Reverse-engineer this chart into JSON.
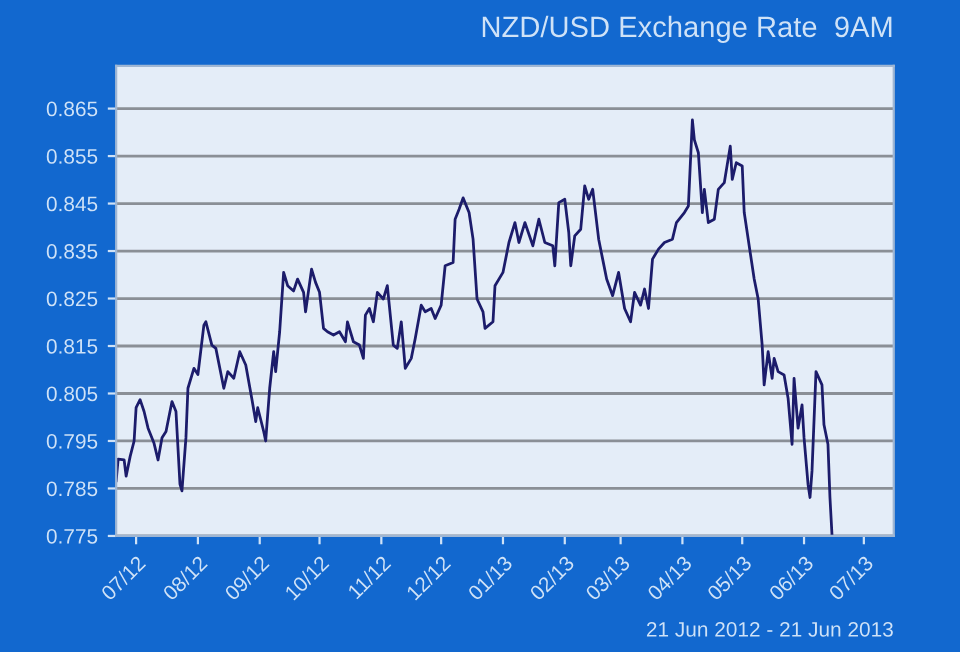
{
  "chart_data": {
    "type": "line",
    "title": "NZD/USD Exchange Rate  9AM",
    "annotations": [
      "21 Jun 2012 - 21 Jun 2013"
    ],
    "xlim": [
      "2012-06-21",
      "2013-07-16"
    ],
    "xticks": [
      {
        "value": "2012-07-01",
        "label": "07/12"
      },
      {
        "value": "2012-08-01",
        "label": "08/12"
      },
      {
        "value": "2012-09-01",
        "label": "09/12"
      },
      {
        "value": "2012-10-01",
        "label": "10/12"
      },
      {
        "value": "2012-11-01",
        "label": "11/12"
      },
      {
        "value": "2012-12-01",
        "label": "12/12"
      },
      {
        "value": "2013-01-01",
        "label": "01/13"
      },
      {
        "value": "2013-02-01",
        "label": "02/13"
      },
      {
        "value": "2013-03-01",
        "label": "03/13"
      },
      {
        "value": "2013-04-01",
        "label": "04/13"
      },
      {
        "value": "2013-05-01",
        "label": "05/13"
      },
      {
        "value": "2013-06-01",
        "label": "06/13"
      },
      {
        "value": "2013-07-01",
        "label": "07/13"
      }
    ],
    "ylim": [
      0.775,
      0.874
    ],
    "yticks": [
      0.775,
      0.785,
      0.795,
      0.805,
      0.815,
      0.825,
      0.835,
      0.845,
      0.855,
      0.865
    ],
    "grid": "y",
    "marker": "none",
    "line_style": "solid",
    "series": [
      {
        "color": "#1c1c6b",
        "x": [
          "2012-06-21",
          "2012-06-22",
          "2012-06-25",
          "2012-06-26",
          "2012-06-28",
          "2012-06-30",
          "2012-07-01",
          "2012-07-03",
          "2012-07-05",
          "2012-07-07",
          "2012-07-10",
          "2012-07-12",
          "2012-07-14",
          "2012-07-16",
          "2012-07-19",
          "2012-07-21",
          "2012-07-23",
          "2012-07-24",
          "2012-07-26",
          "2012-07-27",
          "2012-07-30",
          "2012-08-01",
          "2012-08-04",
          "2012-08-05",
          "2012-08-08",
          "2012-08-10",
          "2012-08-14",
          "2012-08-16",
          "2012-08-19",
          "2012-08-22",
          "2012-08-25",
          "2012-08-28",
          "2012-08-30",
          "2012-08-31",
          "2012-09-03",
          "2012-09-04",
          "2012-09-06",
          "2012-09-08",
          "2012-09-09",
          "2012-09-11",
          "2012-09-13",
          "2012-09-15",
          "2012-09-18",
          "2012-09-20",
          "2012-09-23",
          "2012-09-24",
          "2012-09-27",
          "2012-09-29",
          "2012-10-01",
          "2012-10-03",
          "2012-10-05",
          "2012-10-08",
          "2012-10-11",
          "2012-10-14",
          "2012-10-15",
          "2012-10-18",
          "2012-10-21",
          "2012-10-23",
          "2012-10-24",
          "2012-10-26",
          "2012-10-28",
          "2012-10-30",
          "2012-11-02",
          "2012-11-04",
          "2012-11-07",
          "2012-11-09",
          "2012-11-11",
          "2012-11-13",
          "2012-11-16",
          "2012-11-18",
          "2012-11-21",
          "2012-11-23",
          "2012-11-26",
          "2012-11-28",
          "2012-12-01",
          "2012-12-03",
          "2012-12-07",
          "2012-12-08",
          "2012-12-10",
          "2012-12-12",
          "2012-12-15",
          "2012-12-17",
          "2012-12-19",
          "2012-12-22",
          "2012-12-23",
          "2012-12-27",
          "2012-12-28",
          "2013-01-01",
          "2013-01-04",
          "2013-01-07",
          "2013-01-09",
          "2013-01-12",
          "2013-01-16",
          "2013-01-19",
          "2013-01-22",
          "2013-01-26",
          "2013-01-27",
          "2013-01-29",
          "2013-02-01",
          "2013-02-03",
          "2013-02-04",
          "2013-02-06",
          "2013-02-09",
          "2013-02-11",
          "2013-02-13",
          "2013-02-15",
          "2013-02-16",
          "2013-02-18",
          "2013-02-20",
          "2013-02-22",
          "2013-02-25",
          "2013-02-28",
          "2013-03-03",
          "2013-03-06",
          "2013-03-08",
          "2013-03-11",
          "2013-03-13",
          "2013-03-15",
          "2013-03-17",
          "2013-03-20",
          "2013-03-23",
          "2013-03-27",
          "2013-03-29",
          "2013-04-02",
          "2013-04-04",
          "2013-04-06",
          "2013-04-07",
          "2013-04-09",
          "2013-04-11",
          "2013-04-12",
          "2013-04-14",
          "2013-04-17",
          "2013-04-19",
          "2013-04-22",
          "2013-04-25",
          "2013-04-26",
          "2013-04-28",
          "2013-05-01",
          "2013-05-02",
          "2013-05-05",
          "2013-05-07",
          "2013-05-09",
          "2013-05-11",
          "2013-05-12",
          "2013-05-14",
          "2013-05-16",
          "2013-05-17",
          "2013-05-19",
          "2013-05-22",
          "2013-05-24",
          "2013-05-26",
          "2013-05-27",
          "2013-05-29",
          "2013-05-31",
          "2013-06-01",
          "2013-06-03",
          "2013-06-04",
          "2013-06-05",
          "2013-06-07",
          "2013-06-10",
          "2013-06-11",
          "2013-06-13",
          "2013-06-14",
          "2013-06-15"
        ],
        "values": [
          0.7866,
          0.7912,
          0.791,
          0.7876,
          0.7917,
          0.795,
          0.802,
          0.8037,
          0.8012,
          0.7977,
          0.7945,
          0.791,
          0.7957,
          0.797,
          0.8033,
          0.8012,
          0.7859,
          0.7845,
          0.7957,
          0.8061,
          0.8103,
          0.809,
          0.8194,
          0.8201,
          0.8152,
          0.8145,
          0.8061,
          0.8096,
          0.8082,
          0.8138,
          0.811,
          0.804,
          0.7991,
          0.802,
          0.797,
          0.795,
          0.8061,
          0.8138,
          0.8096,
          0.818,
          0.8305,
          0.8277,
          0.8266,
          0.8291,
          0.8263,
          0.8222,
          0.8312,
          0.8284,
          0.8263,
          0.8187,
          0.818,
          0.8173,
          0.818,
          0.8159,
          0.8201,
          0.8159,
          0.8152,
          0.8124,
          0.8215,
          0.8229,
          0.8201,
          0.8263,
          0.8249,
          0.8277,
          0.8152,
          0.8145,
          0.8201,
          0.8103,
          0.8124,
          0.8166,
          0.8236,
          0.8222,
          0.8229,
          0.8208,
          0.8236,
          0.8319,
          0.8326,
          0.8417,
          0.8438,
          0.8462,
          0.8431,
          0.8375,
          0.8249,
          0.8222,
          0.8187,
          0.8201,
          0.8277,
          0.8305,
          0.8368,
          0.841,
          0.8368,
          0.841,
          0.8361,
          0.8417,
          0.8368,
          0.8361,
          0.8319,
          0.8452,
          0.8459,
          0.8389,
          0.8319,
          0.8382,
          0.8396,
          0.8487,
          0.8459,
          0.848,
          0.8445,
          0.8375,
          0.8333,
          0.8291,
          0.8256,
          0.8305,
          0.8229,
          0.8201,
          0.8263,
          0.8236,
          0.827,
          0.8229,
          0.8333,
          0.8354,
          0.8368,
          0.8375,
          0.841,
          0.8431,
          0.8445,
          0.8626,
          0.8584,
          0.8557,
          0.8431,
          0.848,
          0.841,
          0.8417,
          0.848,
          0.8494,
          0.8571,
          0.8501,
          0.8536,
          0.8529,
          0.8431,
          0.8347,
          0.8291,
          0.8249,
          0.8152,
          0.8068,
          0.8138,
          0.8082,
          0.8124,
          0.8096,
          0.8089,
          0.804,
          0.7943,
          0.8082,
          0.7977,
          0.8026,
          0.7957,
          0.7859,
          0.7831,
          0.7887,
          0.8096,
          0.8068,
          0.7984,
          0.7943,
          0.7831,
          0.7754
        ]
      }
    ]
  }
}
